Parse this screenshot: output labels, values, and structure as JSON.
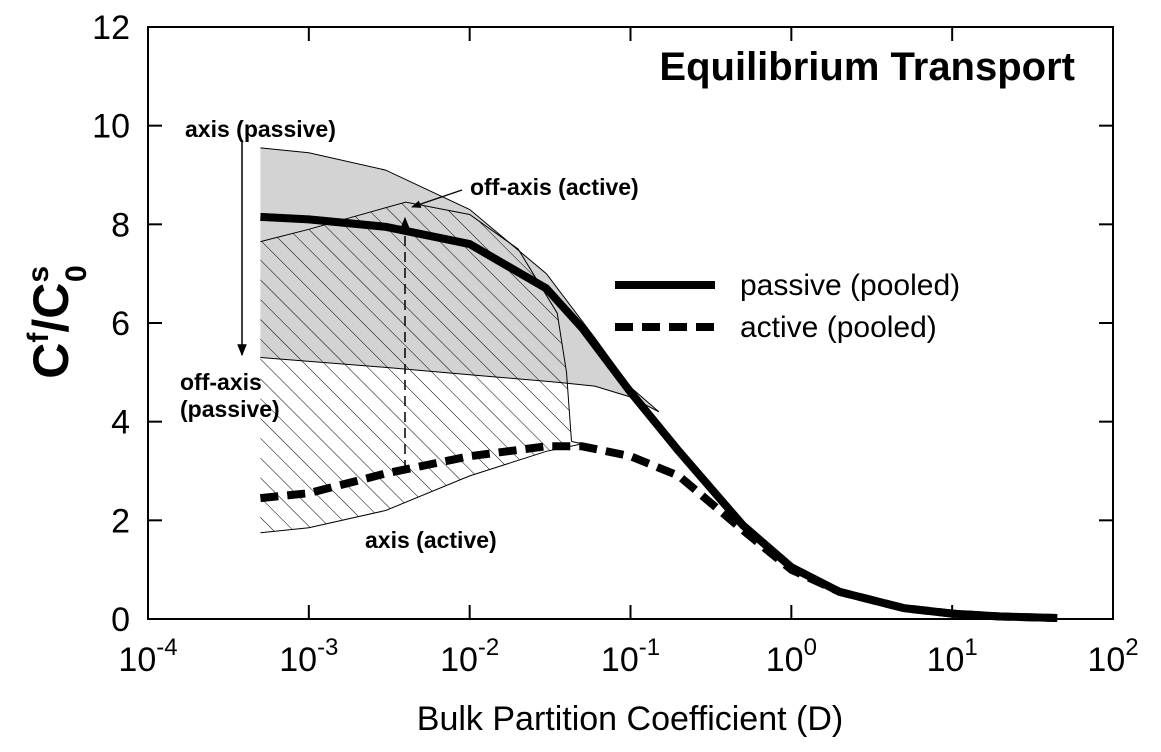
{
  "chart_data": {
    "type": "line",
    "title": "Equilibrium Transport",
    "xlabel": "Bulk Partition Coefficient (D)",
    "ylabel": {
      "base": "C",
      "sup": "f",
      "mid": "/C",
      "sup2": "s",
      "sub2": "0"
    },
    "log_x": true,
    "xlim": [
      0.0001,
      100
    ],
    "ylim": [
      0,
      12
    ],
    "xticks": [
      {
        "value": 0.0001,
        "label": "10",
        "exponent": "-4"
      },
      {
        "value": 0.001,
        "label": "10",
        "exponent": "-3"
      },
      {
        "value": 0.01,
        "label": "10",
        "exponent": "-2"
      },
      {
        "value": 0.1,
        "label": "10",
        "exponent": "-1"
      },
      {
        "value": 1,
        "label": "10",
        "exponent": "0"
      },
      {
        "value": 10,
        "label": "10",
        "exponent": "1"
      },
      {
        "value": 100,
        "label": "10",
        "exponent": "2"
      }
    ],
    "yticks": [
      0,
      2,
      4,
      6,
      8,
      10,
      12
    ],
    "series": [
      {
        "name": "passive (pooled)",
        "color": "#000000",
        "style": "solid",
        "x": [
          0.0005,
          0.001,
          0.003,
          0.01,
          0.03,
          0.05,
          0.1,
          0.2,
          0.5,
          1,
          2,
          5,
          10,
          20,
          45
        ],
        "values": [
          8.15,
          8.1,
          7.95,
          7.6,
          6.7,
          5.9,
          4.6,
          3.4,
          1.9,
          1.05,
          0.55,
          0.22,
          0.11,
          0.05,
          0.02
        ]
      },
      {
        "name": "active (pooled)",
        "color": "#000000",
        "style": "dashed",
        "x": [
          0.0005,
          0.001,
          0.003,
          0.01,
          0.03,
          0.05,
          0.1,
          0.2,
          0.5,
          1,
          2,
          5,
          10,
          20,
          45
        ],
        "values": [
          2.45,
          2.55,
          2.95,
          3.3,
          3.5,
          3.5,
          3.3,
          2.9,
          1.8,
          1.0,
          0.55,
          0.22,
          0.11,
          0.05,
          0.02
        ]
      }
    ],
    "bounds": [
      {
        "name": "axis (passive)",
        "region": "passive",
        "x": [
          0.0005,
          0.001,
          0.003,
          0.01,
          0.03,
          0.06,
          0.1,
          0.15
        ],
        "values": [
          9.55,
          9.45,
          9.1,
          8.3,
          7.0,
          5.7,
          4.7,
          4.2
        ]
      },
      {
        "name": "off-axis (passive)",
        "region": "passive",
        "x": [
          0.0005,
          0.003,
          0.01,
          0.035,
          0.06,
          0.1,
          0.15
        ],
        "values": [
          5.3,
          5.1,
          4.95,
          4.8,
          4.72,
          4.5,
          4.2
        ]
      },
      {
        "name": "off-axis (active)",
        "region": "active",
        "x": [
          0.0005,
          0.001,
          0.004,
          0.01,
          0.02,
          0.035,
          0.04,
          0.043
        ],
        "values": [
          7.65,
          7.9,
          8.45,
          8.2,
          7.5,
          6.2,
          5.0,
          3.6
        ]
      },
      {
        "name": "axis (active)",
        "region": "active",
        "x": [
          0.0005,
          0.001,
          0.003,
          0.01,
          0.03,
          0.05
        ],
        "values": [
          1.75,
          1.85,
          2.2,
          2.9,
          3.4,
          3.55
        ]
      }
    ]
  }
}
